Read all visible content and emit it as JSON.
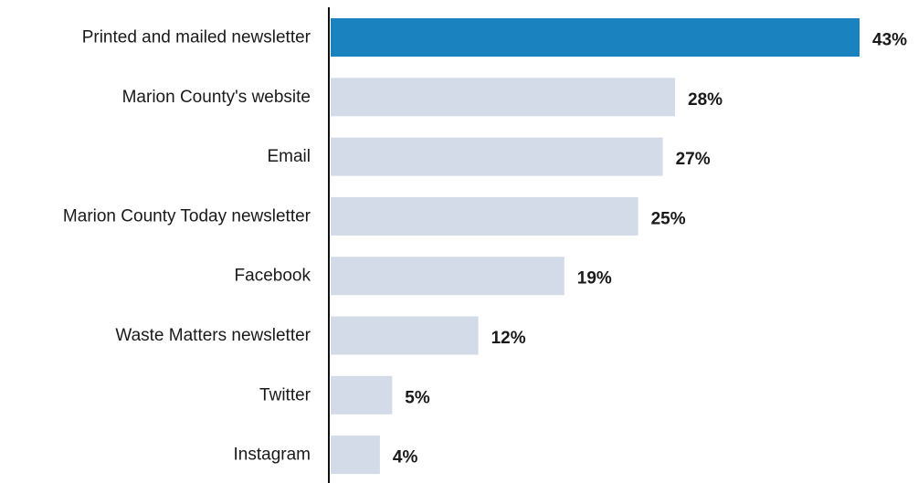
{
  "chart_data": {
    "type": "bar",
    "orientation": "horizontal",
    "categories": [
      "Printed and mailed newsletter",
      "Marion County's website",
      "Email",
      "Marion County Today newsletter",
      "Facebook",
      "Waste Matters newsletter",
      "Twitter",
      "Instagram"
    ],
    "values": [
      43,
      28,
      27,
      25,
      19,
      12,
      5,
      4
    ],
    "value_labels": [
      "43%",
      "28%",
      "27%",
      "25%",
      "19%",
      "12%",
      "5%",
      "4%"
    ],
    "unit": "%",
    "xlim": [
      0,
      43
    ],
    "title": "",
    "xlabel": "",
    "ylabel": "",
    "grid": false,
    "legend": "none",
    "colors": {
      "highlight": "#1b82c0",
      "default": "#d3dbe9",
      "axis": "#111111",
      "text": "#1a1a1a"
    },
    "highlight_index": 0
  }
}
